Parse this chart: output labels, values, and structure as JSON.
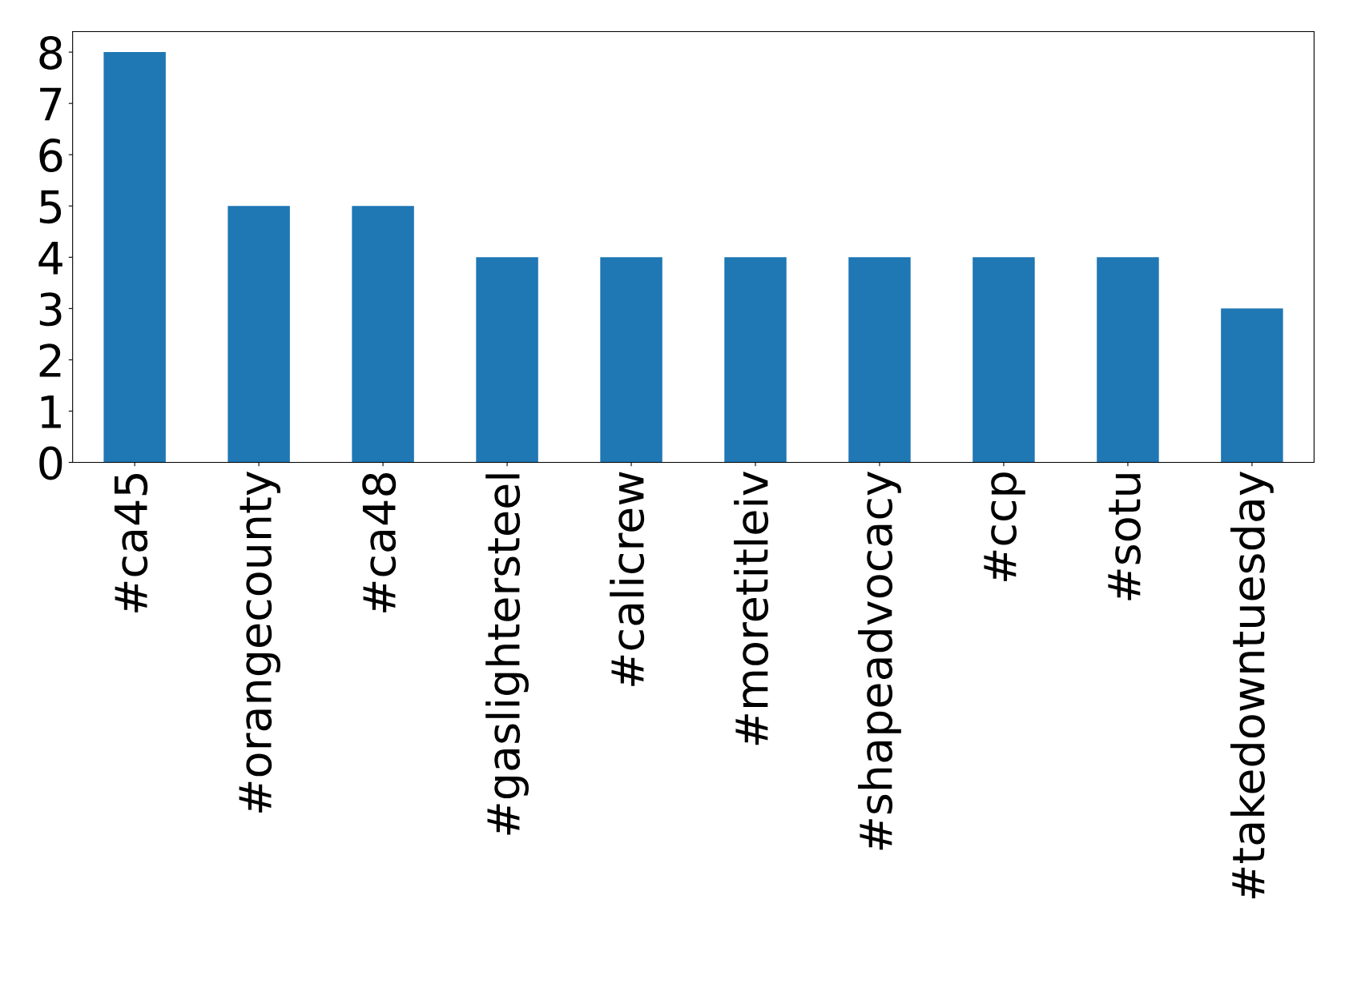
{
  "chart_data": {
    "type": "bar",
    "categories": [
      "#ca45",
      "#orangecounty",
      "#ca48",
      "#gaslightersteel",
      "#calicrew",
      "#moretitleiv",
      "#shapeadvocacy",
      "#ccp",
      "#sotu",
      "#takedowntuesday"
    ],
    "values": [
      8,
      5,
      5,
      4,
      4,
      4,
      4,
      4,
      4,
      3
    ],
    "color": "#1f77b4",
    "ylim": [
      0,
      8.4
    ],
    "yticks": [
      0,
      1,
      2,
      3,
      4,
      5,
      6,
      7,
      8
    ],
    "grid": false,
    "legend": false
  }
}
